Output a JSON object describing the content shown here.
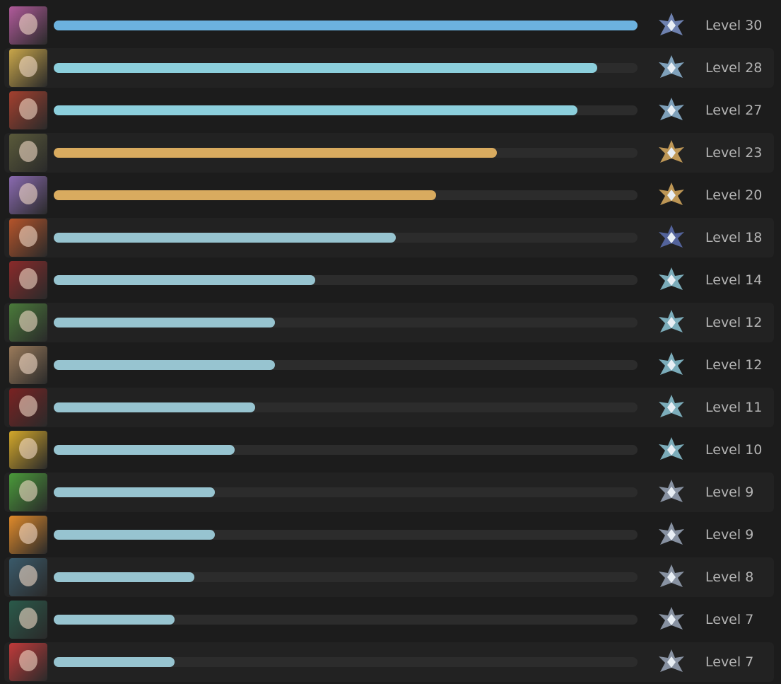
{
  "rows": [
    {
      "level": "Level 30",
      "progress": 100,
      "bar_color": "#6cb2de",
      "badge_color": "#7d93c9",
      "avatar_color": "#b05a9a"
    },
    {
      "level": "Level 28",
      "progress": 93.1,
      "bar_color": "#8ccfdc",
      "badge_color": "#8fb7d6",
      "avatar_color": "#c9a64a"
    },
    {
      "level": "Level 27",
      "progress": 89.7,
      "bar_color": "#8ccfdc",
      "badge_color": "#8fb7d6",
      "avatar_color": "#a4402e"
    },
    {
      "level": "Level 23",
      "progress": 75.9,
      "bar_color": "#d9ab5f",
      "badge_color": "#d9ab5f",
      "avatar_color": "#5a5a3a"
    },
    {
      "level": "Level 20",
      "progress": 65.5,
      "bar_color": "#d9ab5f",
      "badge_color": "#d9ab5f",
      "avatar_color": "#8a6ab0"
    },
    {
      "level": "Level 18",
      "progress": 58.6,
      "bar_color": "#97c4d0",
      "badge_color": "#5c6fb0",
      "avatar_color": "#b5542a"
    },
    {
      "level": "Level 14",
      "progress": 44.8,
      "bar_color": "#97c4d0",
      "badge_color": "#8cc6d6",
      "avatar_color": "#8a2a2a"
    },
    {
      "level": "Level 12",
      "progress": 37.9,
      "bar_color": "#97c4d0",
      "badge_color": "#8cc6d6",
      "avatar_color": "#4a7a3a"
    },
    {
      "level": "Level 12",
      "progress": 37.9,
      "bar_color": "#97c4d0",
      "badge_color": "#8cc6d6",
      "avatar_color": "#9a7a5a"
    },
    {
      "level": "Level 11",
      "progress": 34.5,
      "bar_color": "#97c4d0",
      "badge_color": "#8cc6d6",
      "avatar_color": "#7a2222"
    },
    {
      "level": "Level 10",
      "progress": 31.0,
      "bar_color": "#97c4d0",
      "badge_color": "#8cc6d6",
      "avatar_color": "#d4a82a"
    },
    {
      "level": "Level 9",
      "progress": 27.6,
      "bar_color": "#97c4d0",
      "badge_color": "#9aa6b8",
      "avatar_color": "#4a9a3a"
    },
    {
      "level": "Level 9",
      "progress": 27.6,
      "bar_color": "#97c4d0",
      "badge_color": "#9aa6b8",
      "avatar_color": "#e08a2a"
    },
    {
      "level": "Level 8",
      "progress": 24.1,
      "bar_color": "#97c4d0",
      "badge_color": "#9aa6b8",
      "avatar_color": "#3a5a6a"
    },
    {
      "level": "Level 7",
      "progress": 20.7,
      "bar_color": "#97c4d0",
      "badge_color": "#9aa6b8",
      "avatar_color": "#2a5a4a"
    },
    {
      "level": "Level 7",
      "progress": 20.7,
      "bar_color": "#97c4d0",
      "badge_color": "#9aa6b8",
      "avatar_color": "#c03a3a"
    }
  ]
}
